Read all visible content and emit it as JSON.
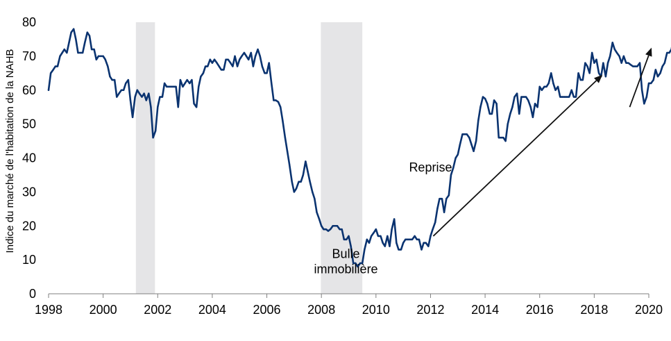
{
  "chart_data": {
    "type": "line",
    "title": "",
    "xlabel": "",
    "ylabel": "Indice du marché de l'habitation de la NAHB",
    "xlim": [
      1998,
      2020
    ],
    "ylim": [
      0,
      80
    ],
    "grid": false,
    "x_ticks": [
      1998,
      2000,
      2002,
      2004,
      2006,
      2008,
      2010,
      2012,
      2014,
      2016,
      2018,
      2020
    ],
    "x_tick_labels": [
      "1998",
      "2000",
      "2002",
      "2004",
      "2006",
      "2008",
      "2010",
      "2012",
      "2014",
      "2016",
      "2018",
      "2020"
    ],
    "y_ticks": [
      0,
      10,
      20,
      30,
      40,
      50,
      60,
      70,
      80
    ],
    "y_tick_labels": [
      "0",
      "10",
      "20",
      "30",
      "40",
      "50",
      "60",
      "70",
      "80"
    ],
    "colors": {
      "line": "#0a3370",
      "recession": "#e5e5e7",
      "arrow": "#111111",
      "axis": "#7f7f7f"
    },
    "recessions": [
      {
        "start": 2001.2,
        "end": 2001.9
      },
      {
        "start": 2007.98,
        "end": 2009.5
      }
    ],
    "annotations": [
      {
        "lines": [
          "Bulle",
          "immobilière"
        ],
        "x": 2008.9,
        "y": 10.5
      },
      {
        "lines": [
          "Reprise"
        ],
        "x": 2012.0,
        "y": 36.0
      }
    ],
    "arrows": [
      {
        "from": [
          2012.1,
          17.0
        ],
        "to": [
          2018.3,
          64.5
        ]
      },
      {
        "from": [
          2019.3,
          55.0
        ],
        "to": [
          2020.1,
          72.5
        ]
      }
    ],
    "series": [
      {
        "values": [
          [
            1998.0,
            60
          ],
          [
            1998.08,
            65
          ],
          [
            1998.17,
            66
          ],
          [
            1998.25,
            67
          ],
          [
            1998.33,
            67
          ],
          [
            1998.42,
            70
          ],
          [
            1998.5,
            71
          ],
          [
            1998.58,
            72
          ],
          [
            1998.67,
            71
          ],
          [
            1998.75,
            74
          ],
          [
            1998.83,
            77
          ],
          [
            1998.92,
            78
          ],
          [
            1999.0,
            75
          ],
          [
            1999.08,
            71
          ],
          [
            1999.17,
            71
          ],
          [
            1999.25,
            71
          ],
          [
            1999.33,
            74
          ],
          [
            1999.42,
            77
          ],
          [
            1999.5,
            76
          ],
          [
            1999.58,
            72
          ],
          [
            1999.67,
            72
          ],
          [
            1999.75,
            69
          ],
          [
            1999.83,
            70
          ],
          [
            1999.92,
            70
          ],
          [
            2000.0,
            70
          ],
          [
            2000.08,
            69
          ],
          [
            2000.17,
            67
          ],
          [
            2000.25,
            64
          ],
          [
            2000.33,
            63
          ],
          [
            2000.42,
            63
          ],
          [
            2000.5,
            58
          ],
          [
            2000.58,
            59
          ],
          [
            2000.67,
            60
          ],
          [
            2000.75,
            60
          ],
          [
            2000.83,
            62
          ],
          [
            2000.92,
            63
          ],
          [
            2001.0,
            57
          ],
          [
            2001.08,
            52
          ],
          [
            2001.17,
            58
          ],
          [
            2001.25,
            60
          ],
          [
            2001.33,
            59
          ],
          [
            2001.42,
            58
          ],
          [
            2001.5,
            59
          ],
          [
            2001.58,
            57
          ],
          [
            2001.67,
            59
          ],
          [
            2001.75,
            55
          ],
          [
            2001.83,
            46
          ],
          [
            2001.92,
            48
          ],
          [
            2002.0,
            55
          ],
          [
            2002.08,
            58
          ],
          [
            2002.17,
            58
          ],
          [
            2002.25,
            62
          ],
          [
            2002.33,
            61
          ],
          [
            2002.42,
            61
          ],
          [
            2002.5,
            61
          ],
          [
            2002.58,
            61
          ],
          [
            2002.67,
            61
          ],
          [
            2002.75,
            55
          ],
          [
            2002.83,
            63
          ],
          [
            2002.92,
            61
          ],
          [
            2003.0,
            62
          ],
          [
            2003.08,
            63
          ],
          [
            2003.17,
            62
          ],
          [
            2003.25,
            63
          ],
          [
            2003.33,
            56
          ],
          [
            2003.42,
            55
          ],
          [
            2003.5,
            61
          ],
          [
            2003.58,
            64
          ],
          [
            2003.67,
            65
          ],
          [
            2003.75,
            67
          ],
          [
            2003.83,
            67
          ],
          [
            2003.92,
            69
          ],
          [
            2004.0,
            68
          ],
          [
            2004.08,
            69
          ],
          [
            2004.17,
            68
          ],
          [
            2004.25,
            67
          ],
          [
            2004.33,
            66
          ],
          [
            2004.42,
            66
          ],
          [
            2004.5,
            69
          ],
          [
            2004.58,
            69
          ],
          [
            2004.67,
            68
          ],
          [
            2004.75,
            67
          ],
          [
            2004.83,
            70
          ],
          [
            2004.92,
            67
          ],
          [
            2005.0,
            69
          ],
          [
            2005.08,
            70
          ],
          [
            2005.17,
            71
          ],
          [
            2005.25,
            70
          ],
          [
            2005.33,
            69
          ],
          [
            2005.42,
            71
          ],
          [
            2005.5,
            67
          ],
          [
            2005.58,
            70
          ],
          [
            2005.67,
            72
          ],
          [
            2005.75,
            70
          ],
          [
            2005.83,
            67
          ],
          [
            2005.92,
            65
          ],
          [
            2006.0,
            65
          ],
          [
            2006.08,
            68
          ],
          [
            2006.17,
            62
          ],
          [
            2006.25,
            57
          ],
          [
            2006.33,
            57
          ],
          [
            2006.42,
            56.5
          ],
          [
            2006.5,
            55
          ],
          [
            2006.58,
            51
          ],
          [
            2006.67,
            46
          ],
          [
            2006.75,
            42
          ],
          [
            2006.83,
            38
          ],
          [
            2006.92,
            33
          ],
          [
            2007.0,
            30
          ],
          [
            2007.08,
            31
          ],
          [
            2007.17,
            33
          ],
          [
            2007.25,
            33
          ],
          [
            2007.33,
            35
          ],
          [
            2007.42,
            39
          ],
          [
            2007.5,
            36
          ],
          [
            2007.58,
            33
          ],
          [
            2007.67,
            30
          ],
          [
            2007.75,
            28
          ],
          [
            2007.83,
            24
          ],
          [
            2007.92,
            22
          ],
          [
            2008.0,
            20
          ],
          [
            2008.08,
            19
          ],
          [
            2008.17,
            19
          ],
          [
            2008.25,
            18.5
          ],
          [
            2008.33,
            19
          ],
          [
            2008.42,
            20
          ],
          [
            2008.5,
            20
          ],
          [
            2008.58,
            20
          ],
          [
            2008.67,
            19
          ],
          [
            2008.75,
            19
          ],
          [
            2008.83,
            16
          ],
          [
            2008.92,
            16
          ],
          [
            2009.0,
            17
          ],
          [
            2009.08,
            14
          ],
          [
            2009.17,
            9
          ],
          [
            2009.25,
            9
          ],
          [
            2009.33,
            8
          ],
          [
            2009.42,
            9
          ],
          [
            2009.5,
            9
          ],
          [
            2009.58,
            13
          ],
          [
            2009.67,
            16
          ],
          [
            2009.75,
            15
          ],
          [
            2009.83,
            17
          ],
          [
            2009.92,
            18
          ],
          [
            2010.0,
            19
          ],
          [
            2010.08,
            17
          ],
          [
            2010.17,
            17
          ],
          [
            2010.25,
            15
          ],
          [
            2010.33,
            14
          ],
          [
            2010.42,
            17
          ],
          [
            2010.5,
            14
          ],
          [
            2010.58,
            19
          ],
          [
            2010.67,
            22
          ],
          [
            2010.75,
            15
          ],
          [
            2010.83,
            13
          ],
          [
            2010.92,
            13
          ],
          [
            2011.0,
            15
          ],
          [
            2011.08,
            16
          ],
          [
            2011.17,
            16
          ],
          [
            2011.25,
            16
          ],
          [
            2011.33,
            16
          ],
          [
            2011.42,
            17
          ],
          [
            2011.5,
            16
          ],
          [
            2011.58,
            16
          ],
          [
            2011.67,
            13
          ],
          [
            2011.75,
            15
          ],
          [
            2011.83,
            15
          ],
          [
            2011.92,
            14
          ],
          [
            2012.0,
            17
          ],
          [
            2012.08,
            19
          ],
          [
            2012.17,
            21
          ],
          [
            2012.25,
            25
          ],
          [
            2012.33,
            28
          ],
          [
            2012.42,
            28
          ],
          [
            2012.5,
            24
          ],
          [
            2012.58,
            28
          ],
          [
            2012.67,
            29
          ],
          [
            2012.75,
            35
          ],
          [
            2012.83,
            37
          ],
          [
            2012.92,
            40
          ],
          [
            2013.0,
            41
          ],
          [
            2013.08,
            44
          ],
          [
            2013.17,
            47
          ],
          [
            2013.25,
            47
          ],
          [
            2013.33,
            47
          ],
          [
            2013.42,
            46
          ],
          [
            2013.5,
            44
          ],
          [
            2013.58,
            42
          ],
          [
            2013.67,
            45
          ],
          [
            2013.75,
            51
          ],
          [
            2013.83,
            55
          ],
          [
            2013.92,
            58
          ],
          [
            2014.0,
            57.5
          ],
          [
            2014.08,
            56
          ],
          [
            2014.17,
            53
          ],
          [
            2014.25,
            53
          ],
          [
            2014.33,
            57
          ],
          [
            2014.42,
            56
          ],
          [
            2014.5,
            46
          ],
          [
            2014.58,
            46
          ],
          [
            2014.67,
            46
          ],
          [
            2014.75,
            45
          ],
          [
            2014.83,
            50
          ],
          [
            2014.92,
            53
          ],
          [
            2015.0,
            55
          ],
          [
            2015.08,
            58
          ],
          [
            2015.17,
            59
          ],
          [
            2015.25,
            53
          ],
          [
            2015.33,
            58
          ],
          [
            2015.42,
            58
          ],
          [
            2015.5,
            58
          ],
          [
            2015.58,
            57
          ],
          [
            2015.67,
            55
          ],
          [
            2015.75,
            52
          ],
          [
            2015.83,
            56
          ],
          [
            2015.92,
            55
          ],
          [
            2016.0,
            61
          ],
          [
            2016.08,
            60
          ],
          [
            2016.17,
            61
          ],
          [
            2016.25,
            61
          ],
          [
            2016.33,
            62
          ],
          [
            2016.42,
            65
          ],
          [
            2016.5,
            62
          ],
          [
            2016.58,
            60
          ],
          [
            2016.67,
            61
          ],
          [
            2016.75,
            58
          ],
          [
            2016.83,
            58
          ],
          [
            2016.92,
            58
          ],
          [
            2017.0,
            58
          ],
          [
            2017.08,
            58
          ],
          [
            2017.17,
            60
          ],
          [
            2017.25,
            58
          ],
          [
            2017.33,
            58
          ],
          [
            2017.42,
            65
          ],
          [
            2017.5,
            63
          ],
          [
            2017.58,
            63
          ],
          [
            2017.67,
            68
          ],
          [
            2017.75,
            67
          ],
          [
            2017.83,
            65
          ],
          [
            2017.92,
            71
          ],
          [
            2018.0,
            68
          ],
          [
            2018.08,
            69
          ],
          [
            2018.17,
            65
          ],
          [
            2018.25,
            64
          ],
          [
            2018.33,
            68
          ],
          [
            2018.42,
            64
          ],
          [
            2018.5,
            68
          ],
          [
            2018.58,
            70
          ],
          [
            2018.67,
            74
          ],
          [
            2018.75,
            72
          ],
          [
            2018.83,
            71
          ],
          [
            2018.92,
            70
          ],
          [
            2019.0,
            68
          ],
          [
            2019.08,
            70
          ],
          [
            2019.17,
            68
          ],
          [
            2019.25,
            68
          ],
          [
            2019.33,
            67.5
          ],
          [
            2019.42,
            67
          ],
          [
            2019.5,
            67
          ],
          [
            2019.58,
            67
          ],
          [
            2019.67,
            68
          ],
          [
            2019.75,
            60
          ],
          [
            2019.83,
            56
          ],
          [
            2019.92,
            58
          ],
          [
            2020.0,
            62
          ],
          [
            2020.08,
            62
          ],
          [
            2020.17,
            63
          ],
          [
            2020.25,
            66
          ],
          [
            2020.33,
            64
          ],
          [
            2020.42,
            65
          ],
          [
            2020.5,
            67
          ],
          [
            2020.58,
            68
          ],
          [
            2020.67,
            71
          ],
          [
            2020.75,
            71
          ],
          [
            2020.83,
            72
          ],
          [
            2020.92,
            76
          ]
        ]
      }
    ]
  }
}
